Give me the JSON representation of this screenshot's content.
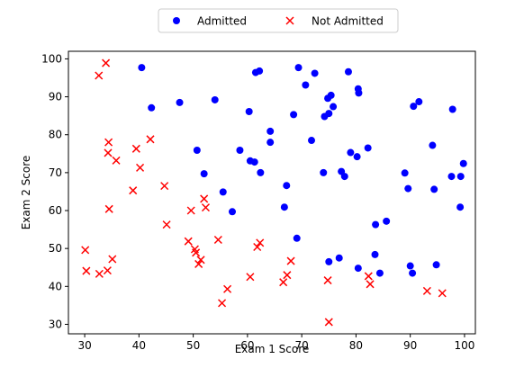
{
  "chart_data": {
    "type": "scatter",
    "xlabel": "Exam 1 Score",
    "ylabel": "Exam 2 Score",
    "xlim": [
      27,
      102
    ],
    "ylim": [
      27.5,
      102
    ],
    "xticks": [
      30,
      40,
      50,
      60,
      70,
      80,
      90,
      100
    ],
    "yticks": [
      30,
      40,
      50,
      60,
      70,
      80,
      90,
      100
    ],
    "grid": false,
    "legend_position": "top-center-outside",
    "series": [
      {
        "name": "Admitted",
        "marker": "circle",
        "color": "#0000ff",
        "points": [
          [
            40.5,
            97.7
          ],
          [
            42.3,
            87.1
          ],
          [
            47.5,
            88.5
          ],
          [
            50.7,
            75.9
          ],
          [
            52.0,
            69.7
          ],
          [
            54.0,
            89.2
          ],
          [
            55.5,
            64.9
          ],
          [
            57.2,
            59.7
          ],
          [
            58.6,
            75.9
          ],
          [
            60.3,
            86.1
          ],
          [
            60.5,
            73.1
          ],
          [
            61.3,
            72.8
          ],
          [
            61.5,
            96.4
          ],
          [
            62.2,
            96.8
          ],
          [
            62.4,
            70.0
          ],
          [
            64.2,
            80.9
          ],
          [
            64.2,
            78.0
          ],
          [
            66.8,
            60.9
          ],
          [
            67.2,
            66.6
          ],
          [
            68.5,
            85.3
          ],
          [
            69.1,
            52.7
          ],
          [
            69.4,
            97.7
          ],
          [
            70.7,
            93.1
          ],
          [
            71.8,
            78.5
          ],
          [
            72.4,
            96.2
          ],
          [
            74.0,
            70.0
          ],
          [
            74.2,
            84.8
          ],
          [
            74.8,
            89.6
          ],
          [
            75.0,
            46.5
          ],
          [
            75.0,
            85.6
          ],
          [
            75.4,
            90.4
          ],
          [
            75.8,
            87.4
          ],
          [
            76.9,
            47.5
          ],
          [
            77.3,
            70.3
          ],
          [
            77.9,
            69.0
          ],
          [
            78.6,
            96.6
          ],
          [
            79.0,
            75.3
          ],
          [
            80.2,
            74.2
          ],
          [
            80.4,
            92.1
          ],
          [
            80.4,
            44.8
          ],
          [
            80.5,
            91.0
          ],
          [
            82.2,
            76.5
          ],
          [
            83.5,
            48.4
          ],
          [
            83.6,
            56.3
          ],
          [
            84.4,
            43.5
          ],
          [
            85.6,
            57.2
          ],
          [
            89.0,
            69.9
          ],
          [
            89.6,
            65.8
          ],
          [
            90.0,
            45.4
          ],
          [
            90.4,
            43.5
          ],
          [
            90.6,
            87.5
          ],
          [
            91.6,
            88.7
          ],
          [
            94.1,
            77.2
          ],
          [
            94.4,
            65.6
          ],
          [
            94.8,
            45.7
          ],
          [
            97.6,
            69.0
          ],
          [
            97.8,
            86.7
          ],
          [
            99.2,
            60.9
          ],
          [
            99.3,
            69.0
          ],
          [
            99.8,
            72.4
          ]
        ]
      },
      {
        "name": "Not Admitted",
        "marker": "x",
        "color": "#ff0000",
        "points": [
          [
            30.1,
            49.6
          ],
          [
            30.3,
            44.1
          ],
          [
            32.6,
            95.6
          ],
          [
            32.7,
            43.3
          ],
          [
            33.9,
            98.9
          ],
          [
            34.2,
            44.2
          ],
          [
            34.3,
            75.2
          ],
          [
            34.4,
            78.0
          ],
          [
            34.5,
            60.4
          ],
          [
            35.1,
            47.2
          ],
          [
            35.8,
            73.2
          ],
          [
            38.9,
            65.3
          ],
          [
            39.5,
            76.3
          ],
          [
            40.2,
            71.3
          ],
          [
            42.1,
            78.8
          ],
          [
            44.7,
            66.5
          ],
          [
            45.1,
            56.3
          ],
          [
            49.1,
            51.9
          ],
          [
            49.6,
            60.0
          ],
          [
            50.3,
            49.8
          ],
          [
            50.5,
            48.9
          ],
          [
            51.0,
            45.9
          ],
          [
            51.4,
            47.0
          ],
          [
            52.0,
            63.1
          ],
          [
            52.3,
            60.8
          ],
          [
            54.6,
            52.3
          ],
          [
            55.3,
            35.6
          ],
          [
            56.3,
            39.3
          ],
          [
            60.5,
            42.5
          ],
          [
            61.8,
            50.4
          ],
          [
            62.3,
            51.5
          ],
          [
            66.6,
            41.1
          ],
          [
            67.3,
            43.0
          ],
          [
            68.0,
            46.7
          ],
          [
            74.8,
            41.6
          ],
          [
            75.0,
            30.6
          ],
          [
            82.3,
            42.7
          ],
          [
            82.6,
            40.6
          ],
          [
            93.1,
            38.8
          ],
          [
            95.9,
            38.2
          ]
        ]
      }
    ]
  }
}
